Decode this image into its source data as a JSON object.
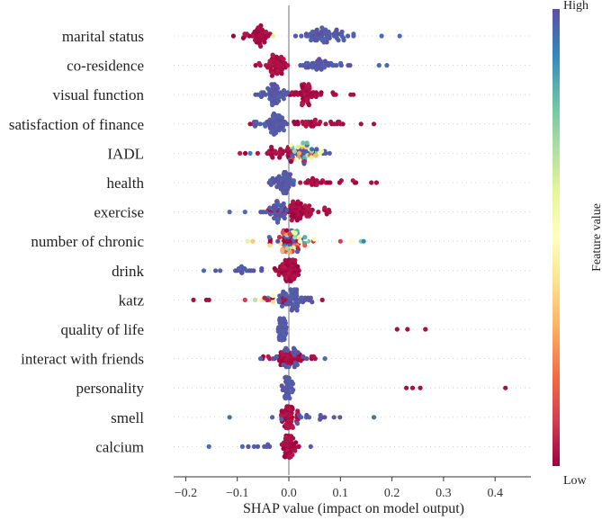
{
  "chart_data": {
    "type": "scatter",
    "subtype": "shap-beeswarm",
    "title": "",
    "xlabel": "SHAP value (impact on model output)",
    "xlim": [
      -0.22,
      0.455
    ],
    "xticks": [
      -0.2,
      -0.1,
      0.0,
      0.1,
      0.2,
      0.3,
      0.4
    ],
    "xtick_labels": [
      "−0.2",
      "−0.1",
      "0.0",
      "0.1",
      "0.2",
      "0.3",
      "0.4"
    ],
    "colorbar": {
      "label": "Feature value",
      "high_label": "High",
      "low_label": "Low"
    },
    "colors": {
      "high": "#5e4fa2",
      "low": "#9e0142",
      "zero_line": "#999999"
    },
    "features": [
      {
        "name": "marital status",
        "low": {
          "range": [
            -0.11,
            -0.03
          ],
          "n": 45,
          "center": -0.06
        },
        "high": {
          "range": [
            0.01,
            0.13
          ],
          "n": 60,
          "center": 0.065
        },
        "outliers": [
          {
            "x": 0.18,
            "v": 0.95
          },
          {
            "x": 0.215,
            "v": 0.95
          },
          {
            "x": -0.03,
            "v": 0.6
          }
        ]
      },
      {
        "name": "co-residence",
        "low": {
          "range": [
            -0.065,
            0.0
          ],
          "n": 55,
          "center": -0.025
        },
        "high": {
          "range": [
            0.02,
            0.145
          ],
          "n": 40,
          "center": 0.07
        },
        "outliers": [
          {
            "x": 0.175,
            "v": 0.95
          },
          {
            "x": 0.19,
            "v": 0.95
          }
        ]
      },
      {
        "name": "visual function",
        "low": {
          "range": [
            0.0,
            0.095
          ],
          "n": 55,
          "center": 0.03
        },
        "high": {
          "range": [
            -0.065,
            0.0
          ],
          "n": 55,
          "center": -0.025
        },
        "outliers": [
          {
            "x": 0.12,
            "v": 0.02
          },
          {
            "x": 0.125,
            "v": 0.02
          }
        ]
      },
      {
        "name": "satisfaction of finance",
        "low": {
          "range": [
            0.01,
            0.12
          ],
          "n": 30,
          "center": 0.04
        },
        "high": {
          "range": [
            -0.07,
            0.0
          ],
          "n": 65,
          "center": -0.025
        },
        "outliers": [
          {
            "x": 0.14,
            "v": 0.02
          },
          {
            "x": 0.165,
            "v": 0.02
          },
          {
            "x": -0.075,
            "v": 0.02
          }
        ]
      },
      {
        "name": "IADL",
        "low": {
          "range": [
            -0.09,
            0.02
          ],
          "n": 30,
          "center": -0.02
        },
        "high": {
          "range": [
            0.0,
            0.08
          ],
          "n": 25,
          "center": 0.03
        },
        "mixed": {
          "range": [
            0.0,
            0.07
          ],
          "n": 35,
          "center": 0.035
        },
        "outliers": [
          {
            "x": -0.095,
            "v": 0.05
          },
          {
            "x": -0.075,
            "v": 0.9
          }
        ]
      },
      {
        "name": "health",
        "low": {
          "range": [
            0.015,
            0.13
          ],
          "n": 25,
          "center": 0.05
        },
        "high": {
          "range": [
            -0.04,
            0.01
          ],
          "n": 55,
          "center": -0.01
        },
        "outliers": [
          {
            "x": 0.16,
            "v": 0.02
          },
          {
            "x": 0.17,
            "v": 0.02
          }
        ]
      },
      {
        "name": "exercise",
        "low": {
          "range": [
            -0.04,
            0.085
          ],
          "n": 75,
          "center": 0.01
        },
        "high": {
          "range": [
            -0.06,
            0.0
          ],
          "n": 35,
          "center": -0.02
        },
        "outliers": [
          {
            "x": -0.115,
            "v": 0.95
          },
          {
            "x": -0.085,
            "v": 0.95
          }
        ]
      },
      {
        "name": "number of chronic",
        "low": {
          "range": [
            -0.04,
            0.04
          ],
          "n": 25,
          "center": 0.0
        },
        "high": {
          "range": [
            -0.02,
            0.03
          ],
          "n": 15,
          "center": 0.0
        },
        "mixed": {
          "range": [
            -0.05,
            0.05
          ],
          "n": 75,
          "center": 0.0
        },
        "outliers": [
          {
            "x": -0.08,
            "v": 0.6
          },
          {
            "x": -0.07,
            "v": 0.35
          },
          {
            "x": 0.12,
            "v": 0.5
          },
          {
            "x": 0.14,
            "v": 0.75
          },
          {
            "x": 0.145,
            "v": 0.9
          },
          {
            "x": 0.1,
            "v": 0.1
          }
        ]
      },
      {
        "name": "drink",
        "low": {
          "range": [
            -0.03,
            0.03
          ],
          "n": 80,
          "center": 0.0
        },
        "high": {
          "range": [
            -0.165,
            -0.05
          ],
          "n": 18,
          "center": -0.08
        },
        "outliers": [
          {
            "x": -0.165,
            "v": 0.95
          }
        ]
      },
      {
        "name": "katz",
        "low": {
          "range": [
            -0.02,
            0.0
          ],
          "n": 10,
          "center": -0.01
        },
        "high": {
          "range": [
            -0.02,
            0.045
          ],
          "n": 60,
          "center": 0.01
        },
        "mixed": {
          "range": [
            -0.075,
            -0.015
          ],
          "n": 12,
          "center": -0.04
        },
        "outliers": [
          {
            "x": -0.185,
            "v": 0.02
          },
          {
            "x": -0.16,
            "v": 0.02
          },
          {
            "x": -0.155,
            "v": 0.02
          },
          {
            "x": -0.085,
            "v": 0.1
          },
          {
            "x": 0.065,
            "v": 0.02
          }
        ]
      },
      {
        "name": "quality of life",
        "low": {
          "range": [
            0.2,
            0.27
          ],
          "n": 0,
          "center": 0.23
        },
        "high": {
          "range": [
            -0.025,
            0.0
          ],
          "n": 55,
          "center": -0.012
        },
        "outliers": [
          {
            "x": 0.21,
            "v": 0.02
          },
          {
            "x": 0.23,
            "v": 0.02
          },
          {
            "x": 0.265,
            "v": 0.02
          }
        ]
      },
      {
        "name": "interact with friends",
        "low": {
          "range": [
            -0.055,
            0.055
          ],
          "n": 55,
          "center": 0.0
        },
        "high": {
          "range": [
            -0.04,
            0.05
          ],
          "n": 20,
          "center": 0.01
        },
        "outliers": [
          {
            "x": -0.055,
            "v": 0.95
          },
          {
            "x": 0.07,
            "v": 0.95
          }
        ]
      },
      {
        "name": "personality",
        "low": {
          "range": [
            0.22,
            0.26
          ],
          "n": 0,
          "center": 0.24
        },
        "high": {
          "range": [
            -0.015,
            0.01
          ],
          "n": 40,
          "center": -0.003
        },
        "outliers": [
          {
            "x": 0.228,
            "v": 0.02
          },
          {
            "x": 0.24,
            "v": 0.02
          },
          {
            "x": 0.255,
            "v": 0.02
          },
          {
            "x": 0.42,
            "v": 0.02
          }
        ]
      },
      {
        "name": "smell",
        "low": {
          "range": [
            -0.015,
            0.02
          ],
          "n": 70,
          "center": 0.0
        },
        "high": {
          "range": [
            -0.04,
            0.12
          ],
          "n": 15,
          "center": 0.05
        },
        "outliers": [
          {
            "x": -0.115,
            "v": 0.95
          },
          {
            "x": 0.165,
            "v": 0.95
          }
        ]
      },
      {
        "name": "calcium",
        "low": {
          "range": [
            -0.015,
            0.02
          ],
          "n": 65,
          "center": 0.0
        },
        "high": {
          "range": [
            -0.09,
            0.05
          ],
          "n": 8,
          "center": -0.05
        },
        "outliers": [
          {
            "x": -0.155,
            "v": 0.95
          },
          {
            "x": -0.09,
            "v": 0.95
          }
        ]
      }
    ]
  }
}
